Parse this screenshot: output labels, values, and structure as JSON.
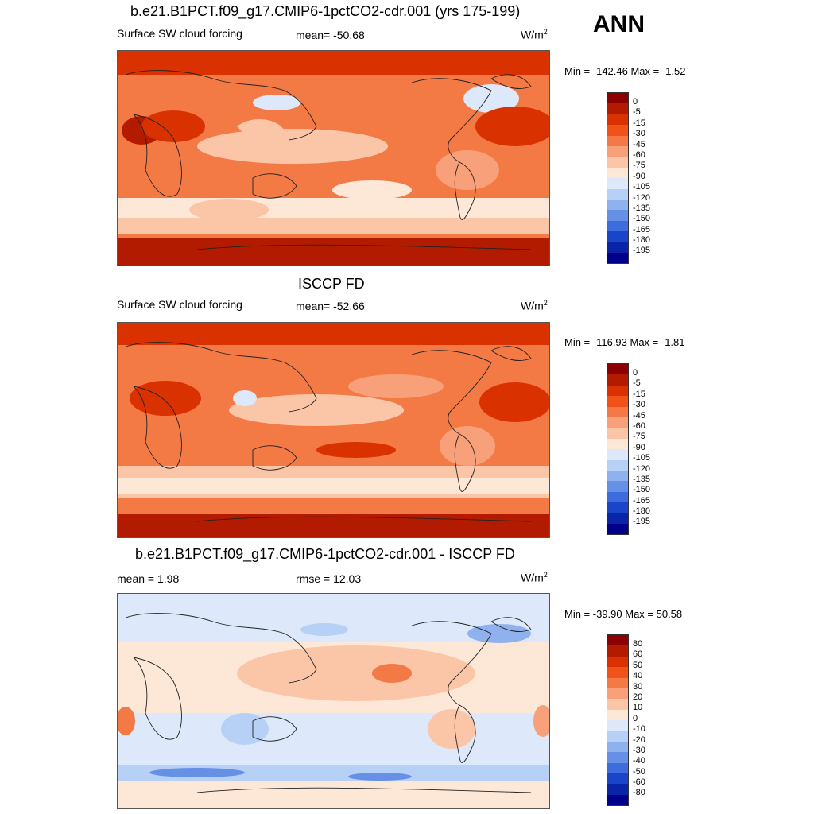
{
  "season": "ANN",
  "panels": [
    {
      "title": "b.e21.B1PCT.f09_g17.CMIP6-1pctCO2-cdr.001 (yrs 175-199)",
      "left_label": "Surface SW cloud forcing",
      "mean_label": "mean= -50.68",
      "units": "W/m",
      "units_sup": "2",
      "minmax": "Min = -142.46 Max =  -1.52",
      "colorbar": {
        "labels": [
          "0",
          "-5",
          "-15",
          "-30",
          "-45",
          "-60",
          "-75",
          "-90",
          "-105",
          "-120",
          "-135",
          "-150",
          "-165",
          "-180",
          "-195"
        ],
        "colors": [
          "#8b0000",
          "#b31b00",
          "#d93200",
          "#f0521a",
          "#f47a45",
          "#f8a07a",
          "#fbc6a8",
          "#fde8d8",
          "#dde9fa",
          "#b7d0f5",
          "#8fb2ef",
          "#6690e6",
          "#3d6ddc",
          "#1a45c8",
          "#0a24a8",
          "#00008b"
        ]
      }
    },
    {
      "title": "ISCCP FD",
      "left_label": "Surface SW cloud forcing",
      "mean_label": "mean= -52.66",
      "units": "W/m",
      "units_sup": "2",
      "minmax": "Min = -116.93 Max =  -1.81",
      "colorbar": {
        "labels": [
          "0",
          "-5",
          "-15",
          "-30",
          "-45",
          "-60",
          "-75",
          "-90",
          "-105",
          "-120",
          "-135",
          "-150",
          "-165",
          "-180",
          "-195"
        ],
        "colors": [
          "#8b0000",
          "#b31b00",
          "#d93200",
          "#f0521a",
          "#f47a45",
          "#f8a07a",
          "#fbc6a8",
          "#fde8d8",
          "#dde9fa",
          "#b7d0f5",
          "#8fb2ef",
          "#6690e6",
          "#3d6ddc",
          "#1a45c8",
          "#0a24a8",
          "#00008b"
        ]
      }
    },
    {
      "title": "b.e21.B1PCT.f09_g17.CMIP6-1pctCO2-cdr.001 - ISCCP FD",
      "left_label": "mean =   1.98",
      "mean_label": "rmse =  12.03",
      "units": "W/m",
      "units_sup": "2",
      "minmax": "Min = -39.90 Max =  50.58",
      "colorbar": {
        "labels": [
          "80",
          "60",
          "50",
          "40",
          "30",
          "20",
          "10",
          "0",
          "-10",
          "-20",
          "-30",
          "-40",
          "-50",
          "-60",
          "-80"
        ],
        "colors": [
          "#8b0000",
          "#b31b00",
          "#d93200",
          "#f0521a",
          "#f47a45",
          "#f8a07a",
          "#fbc6a8",
          "#fde8d8",
          "#dde9fa",
          "#b7d0f5",
          "#8fb2ef",
          "#6690e6",
          "#3d6ddc",
          "#1a45c8",
          "#0a24a8",
          "#00008b"
        ]
      }
    }
  ]
}
